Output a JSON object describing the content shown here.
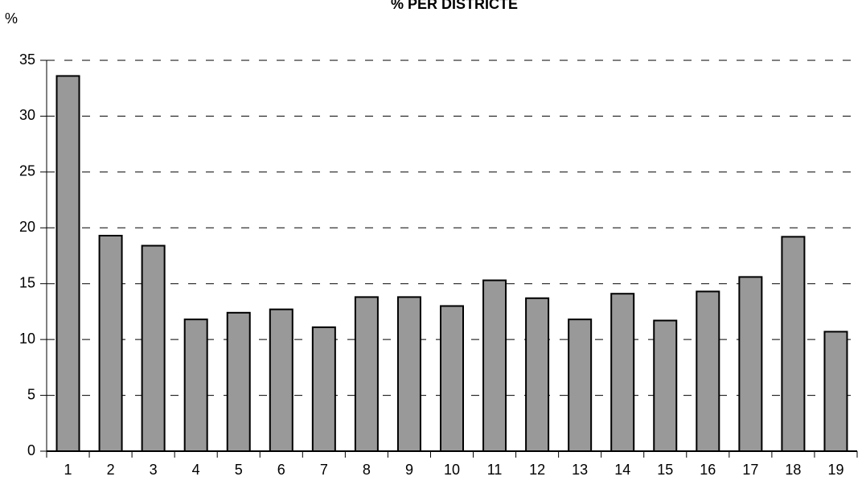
{
  "chart_data": {
    "type": "bar",
    "title": "% PER DISTRICTE",
    "y_label": "%",
    "categories": [
      "1",
      "2",
      "3",
      "4",
      "5",
      "6",
      "7",
      "8",
      "9",
      "10",
      "11",
      "12",
      "13",
      "14",
      "15",
      "16",
      "17",
      "18",
      "19"
    ],
    "values": [
      33.6,
      19.3,
      18.4,
      11.8,
      12.4,
      12.7,
      11.1,
      13.8,
      13.8,
      13.0,
      15.3,
      13.7,
      11.8,
      14.1,
      11.7,
      14.3,
      15.6,
      19.2,
      10.7
    ],
    "color": "#999999",
    "ylim": [
      0,
      35
    ],
    "yticks": [
      0,
      5,
      10,
      15,
      20,
      25,
      30,
      35
    ],
    "grid": true
  }
}
